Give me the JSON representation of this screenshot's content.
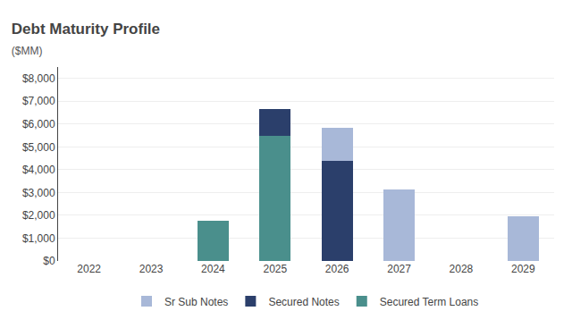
{
  "chart_data": {
    "type": "bar",
    "title": "Debt Maturity Profile",
    "subtitle": "($MM)",
    "categories": [
      "2022",
      "2023",
      "2024",
      "2025",
      "2026",
      "2027",
      "2028",
      "2029"
    ],
    "series": [
      {
        "name": "Secured Term Loans",
        "color": "#4a8f8c",
        "values": [
          0,
          0,
          1750,
          5500,
          0,
          0,
          0,
          0
        ]
      },
      {
        "name": "Secured Notes",
        "color": "#2b3f6b",
        "values": [
          0,
          0,
          0,
          1150,
          4400,
          0,
          0,
          0
        ]
      },
      {
        "name": "Sr Sub Notes",
        "color": "#a8b8d8",
        "values": [
          0,
          0,
          0,
          0,
          1450,
          3150,
          0,
          1950
        ]
      }
    ],
    "stacked": true,
    "ylim": [
      0,
      8500
    ],
    "yticks": [
      {
        "value": 0,
        "label": "$0"
      },
      {
        "value": 1000,
        "label": "$1,000"
      },
      {
        "value": 2000,
        "label": "$2,000"
      },
      {
        "value": 3000,
        "label": "$3,000"
      },
      {
        "value": 4000,
        "label": "$4,000"
      },
      {
        "value": 5000,
        "label": "$5,000"
      },
      {
        "value": 6000,
        "label": "$6,000"
      },
      {
        "value": 7000,
        "label": "$7,000"
      },
      {
        "value": 8000,
        "label": "$8,000"
      }
    ],
    "grid": true,
    "legend": "bottom"
  }
}
